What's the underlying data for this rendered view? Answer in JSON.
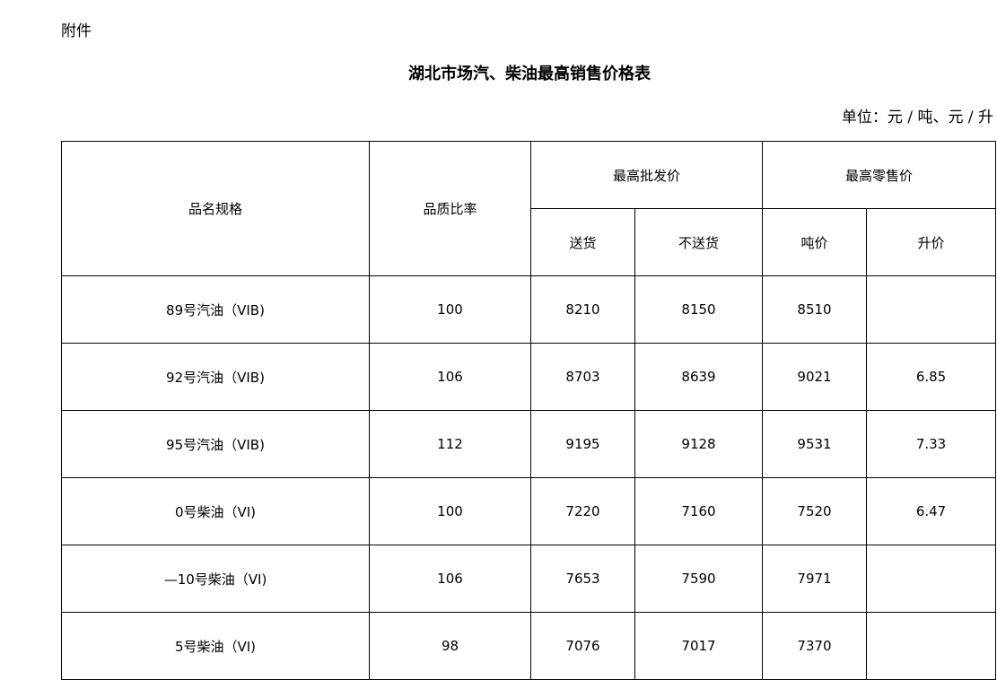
{
  "attachment_label": "附件",
  "title": "湖北市场汽、柴油最高销售价格表",
  "unit": "单位：元 / 吨、元 / 升",
  "headers": {
    "name": "品名规格",
    "ratio": "品质比率",
    "wholesale": "最高批发价",
    "retail": "最高零售价",
    "delivered": "送货",
    "not_delivered": "不送货",
    "per_ton": "吨价",
    "per_liter": "升价"
  },
  "rows": [
    {
      "name": "89号汽油（VIB)",
      "ratio": "100",
      "delivered": "8210",
      "not_delivered": "8150",
      "per_ton": "8510",
      "per_liter": ""
    },
    {
      "name": "92号汽油（VIB)",
      "ratio": "106",
      "delivered": "8703",
      "not_delivered": "8639",
      "per_ton": "9021",
      "per_liter": "6.85"
    },
    {
      "name": "95号汽油（VIB)",
      "ratio": "112",
      "delivered": "9195",
      "not_delivered": "9128",
      "per_ton": "9531",
      "per_liter": "7.33"
    },
    {
      "name": "0号柴油（VI)",
      "ratio": "100",
      "delivered": "7220",
      "not_delivered": "7160",
      "per_ton": "7520",
      "per_liter": "6.47"
    },
    {
      "name": "—10号柴油（VI)",
      "ratio": "106",
      "delivered": "7653",
      "not_delivered": "7590",
      "per_ton": "7971",
      "per_liter": ""
    },
    {
      "name": "5号柴油（VI)",
      "ratio": "98",
      "delivered": "7076",
      "not_delivered": "7017",
      "per_ton": "7370",
      "per_liter": ""
    }
  ]
}
